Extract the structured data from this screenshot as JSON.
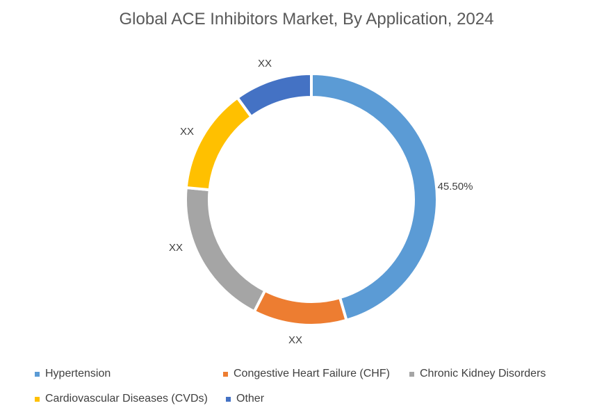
{
  "chart_data": {
    "type": "pie",
    "variant": "donut",
    "title": "Global ACE Inhibitors Market, By Application, 2024",
    "slices": [
      {
        "name": "Hypertension",
        "value": 45.5,
        "label": "45.50%",
        "color": "#5B9BD5"
      },
      {
        "name": "Congestive Heart Failure (CHF)",
        "value": 12.0,
        "label": "XX",
        "color": "#ED7D31"
      },
      {
        "name": "Chronic Kidney Disorders",
        "value": 19.0,
        "label": "XX",
        "color": "#A5A5A5"
      },
      {
        "name": "Cardiovascular Diseases (CVDs)",
        "value": 13.5,
        "label": "XX",
        "color": "#FFC000"
      },
      {
        "name": "Other",
        "value": 10.0,
        "label": "XX",
        "color": "#4472C4"
      }
    ],
    "legend_position": "bottom"
  }
}
